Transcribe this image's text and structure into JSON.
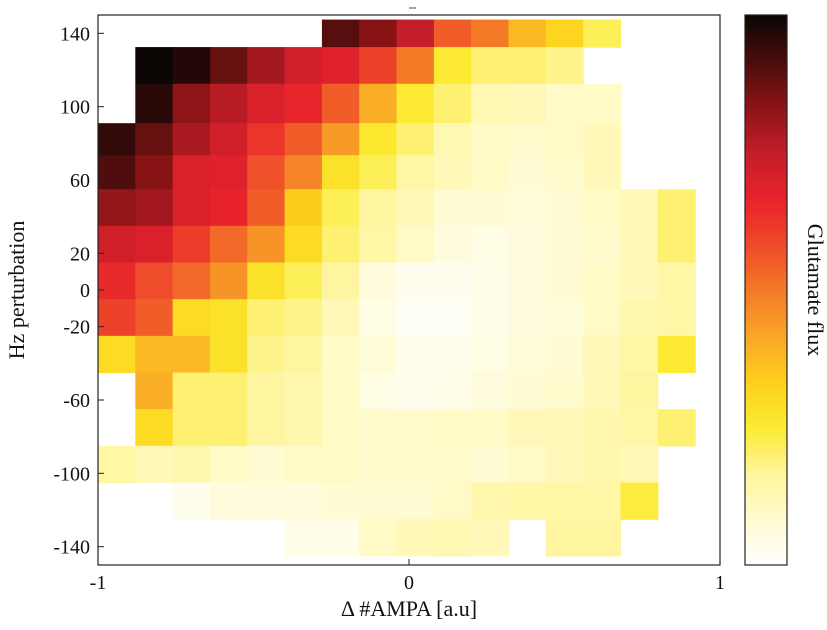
{
  "chart_data": {
    "type": "heatmap",
    "title": "",
    "xlabel": "Δ #AMPA [a.u]",
    "ylabel": "Hz perturbation",
    "colorbar_label": "Glutamate flux",
    "xlim": [
      -1,
      1
    ],
    "ylim": [
      -150,
      150
    ],
    "x_ticks": [
      -1,
      0,
      1
    ],
    "y_ticks": [
      140,
      100,
      60,
      20,
      0,
      -20,
      -60,
      -100,
      -140
    ],
    "x_centers": [
      -0.94,
      -0.82,
      -0.7,
      -0.58,
      -0.46,
      -0.34,
      -0.22,
      -0.1,
      0.02,
      0.14,
      0.26,
      0.38,
      0.5,
      0.62,
      0.74,
      0.86
    ],
    "y_centers": [
      140,
      125,
      100,
      82,
      65,
      45,
      25,
      5,
      -15,
      -35,
      -55,
      -75,
      -95,
      -115,
      -135
    ],
    "colormap": [
      "#ffffff",
      "#fffbd0",
      "#fff59c",
      "#fceb32",
      "#fdd01c",
      "#f9a627",
      "#f47a28",
      "#ee4a2a",
      "#e8222a",
      "#c41e2a",
      "#8c1416",
      "#4a0c0c",
      "#0b0604"
    ],
    "values_max": 1,
    "rows": [
      [
        null,
        null,
        null,
        null,
        null,
        null,
        0.9,
        0.84,
        0.75,
        0.55,
        0.5,
        0.38,
        0.32,
        0.22,
        null,
        null
      ],
      [
        null,
        1.0,
        0.97,
        0.88,
        0.8,
        0.72,
        0.69,
        0.6,
        0.5,
        0.25,
        0.2,
        0.2,
        0.18,
        null,
        null,
        null
      ],
      [
        null,
        0.96,
        0.83,
        0.77,
        0.7,
        0.66,
        0.55,
        0.4,
        0.25,
        0.2,
        0.13,
        0.12,
        0.1,
        0.1,
        null,
        null
      ],
      [
        0.95,
        0.88,
        0.79,
        0.72,
        0.63,
        0.55,
        0.44,
        0.26,
        0.2,
        0.13,
        0.1,
        0.09,
        0.1,
        0.12,
        null,
        null
      ],
      [
        0.91,
        0.84,
        0.7,
        0.69,
        0.57,
        0.48,
        0.28,
        0.22,
        0.15,
        0.12,
        0.1,
        0.08,
        0.09,
        0.12,
        null,
        null
      ],
      [
        0.82,
        0.8,
        0.7,
        0.67,
        0.55,
        0.34,
        0.22,
        0.16,
        0.12,
        0.08,
        0.08,
        0.07,
        0.08,
        0.1,
        0.12,
        0.2
      ],
      [
        0.72,
        0.7,
        0.61,
        0.53,
        0.45,
        0.3,
        0.2,
        0.15,
        0.1,
        0.06,
        0.05,
        0.06,
        0.08,
        0.09,
        0.12,
        0.2
      ],
      [
        0.65,
        0.58,
        0.53,
        0.45,
        0.28,
        0.22,
        0.16,
        0.06,
        0.03,
        0.03,
        0.04,
        0.06,
        0.08,
        0.1,
        0.12,
        0.15
      ],
      [
        0.6,
        0.55,
        0.3,
        0.28,
        0.2,
        0.18,
        0.12,
        0.05,
        0.02,
        0.02,
        0.04,
        0.06,
        0.07,
        0.1,
        0.14,
        0.15
      ],
      [
        0.3,
        0.38,
        0.38,
        0.28,
        0.18,
        0.16,
        0.1,
        0.07,
        0.03,
        0.03,
        0.05,
        0.07,
        0.08,
        0.12,
        0.15,
        0.25
      ],
      [
        null,
        0.4,
        0.2,
        0.2,
        0.16,
        0.14,
        0.1,
        0.05,
        0.03,
        0.04,
        0.06,
        0.08,
        0.09,
        0.12,
        0.16,
        null
      ],
      [
        null,
        0.3,
        0.2,
        0.2,
        0.16,
        0.14,
        0.1,
        0.09,
        0.09,
        0.1,
        0.1,
        0.12,
        0.12,
        0.14,
        0.15,
        0.2
      ],
      [
        0.15,
        0.12,
        0.14,
        0.1,
        0.08,
        0.1,
        0.1,
        0.09,
        0.09,
        0.09,
        0.08,
        0.1,
        0.12,
        0.14,
        0.12,
        null
      ],
      [
        null,
        null,
        0.03,
        0.06,
        0.06,
        0.06,
        0.08,
        0.08,
        0.08,
        0.1,
        0.14,
        0.15,
        0.15,
        0.15,
        0.24,
        null
      ],
      [
        null,
        null,
        null,
        null,
        null,
        0.04,
        0.04,
        0.1,
        0.12,
        0.13,
        0.12,
        null,
        0.16,
        0.16,
        null,
        null
      ]
    ]
  }
}
